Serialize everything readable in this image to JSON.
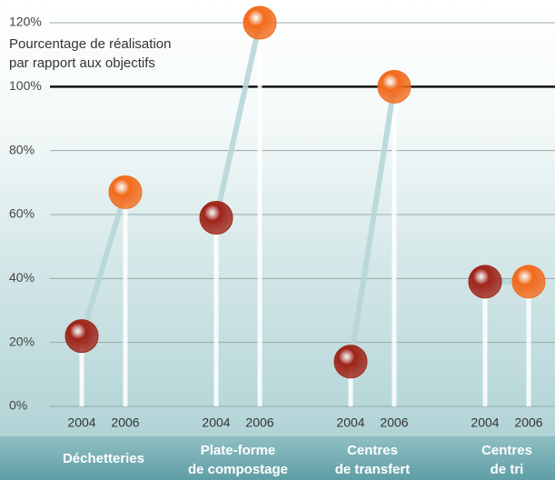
{
  "chart_data": {
    "type": "lollipop",
    "ylabel": [
      "Pourcentage de réalisation",
      "par rapport aux objectifs"
    ],
    "categories": [
      [
        "Déchetteries"
      ],
      [
        "Plate-forme",
        "de compostage"
      ],
      [
        "Centres",
        "de transfert"
      ],
      [
        "Centres",
        "de tri"
      ]
    ],
    "series": [
      {
        "name": "2004",
        "color": "#9e2418",
        "values": [
          22,
          59,
          14,
          39
        ]
      },
      {
        "name": "2006",
        "color": "#f26a1b",
        "values": [
          67,
          120,
          100,
          39
        ]
      }
    ],
    "ylim": [
      0,
      120
    ],
    "yticks": [
      {
        "value": 0,
        "label": "0%"
      },
      {
        "value": 20,
        "label": "20%"
      },
      {
        "value": 40,
        "label": "40%"
      },
      {
        "value": 60,
        "label": "60%"
      },
      {
        "value": 80,
        "label": "80%"
      },
      {
        "value": 100,
        "label": "100%"
      },
      {
        "value": 120,
        "label": "120%"
      }
    ],
    "grid": true,
    "reference_line": 100
  }
}
